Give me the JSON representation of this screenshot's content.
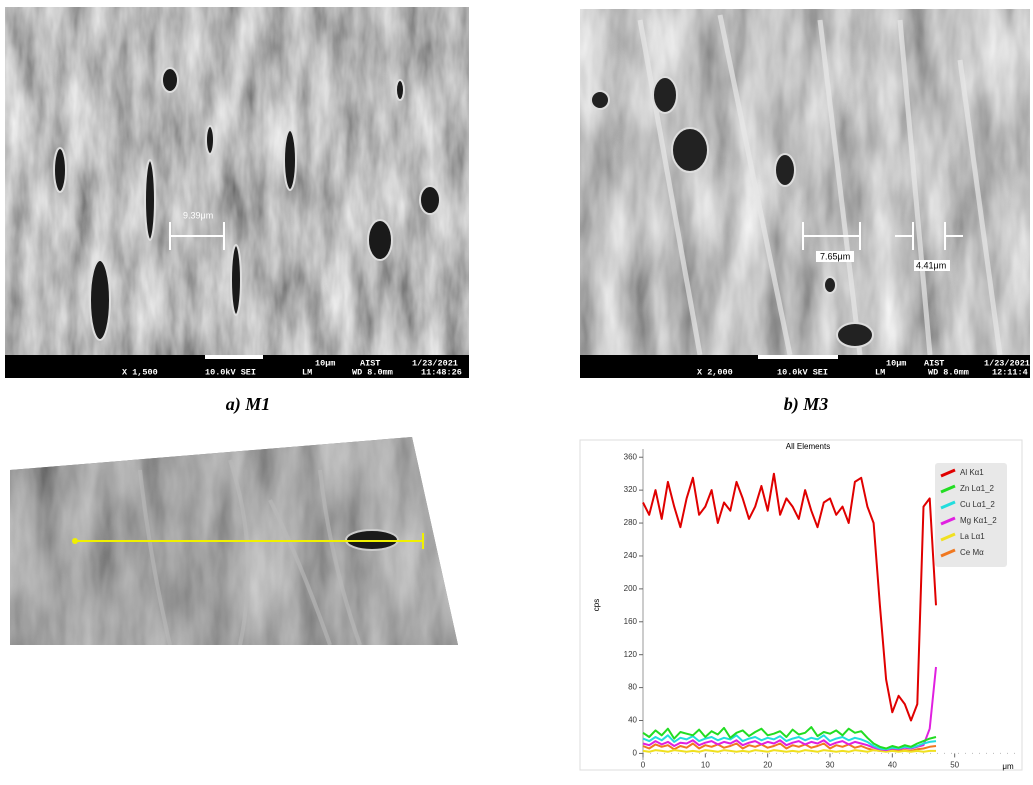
{
  "figure": {
    "panels": [
      {
        "caption": "a) M1",
        "magnification": "X 1,500",
        "voltage": "10.0kV SEI",
        "scale": "10μm",
        "org": "AIST",
        "mode": "LM",
        "date": "1/23/2021",
        "wd": "WD 8.0mm",
        "time": "11:48:26",
        "measurements": [
          "9.39μm"
        ]
      },
      {
        "caption": "b) M3",
        "magnification": "X 2,000",
        "voltage": "10.0kV SEI",
        "scale": "10μm",
        "org": "AIST",
        "mode": "LM",
        "date": "1/23/2021",
        "wd": "WD 8.0mm",
        "time": "12:11:4",
        "measurements": [
          "7.65μm",
          "4.41μm"
        ]
      }
    ]
  },
  "chart_data": {
    "type": "line",
    "title": "All Elements",
    "y_label": "cps",
    "x_label": "μm",
    "x": [
      0,
      1,
      2,
      3,
      4,
      5,
      6,
      7,
      8,
      9,
      10,
      11,
      12,
      13,
      14,
      15,
      16,
      17,
      18,
      19,
      20,
      21,
      22,
      23,
      24,
      25,
      26,
      27,
      28,
      29,
      30,
      31,
      32,
      33,
      34,
      35,
      36,
      37,
      38,
      39,
      40,
      41,
      42,
      43,
      44,
      45,
      46,
      47
    ],
    "series": [
      {
        "name": "Al Kα1",
        "color": "#e00000",
        "values": [
          305,
          290,
          320,
          285,
          330,
          300,
          275,
          310,
          335,
          290,
          300,
          320,
          280,
          305,
          295,
          330,
          310,
          285,
          300,
          325,
          295,
          340,
          290,
          310,
          300,
          285,
          320,
          295,
          275,
          305,
          310,
          290,
          300,
          280,
          330,
          335,
          300,
          280,
          180,
          90,
          50,
          70,
          60,
          40,
          60,
          300,
          310,
          180
        ]
      },
      {
        "name": "Zn Lα1_2",
        "color": "#22dd22",
        "values": [
          25,
          20,
          28,
          22,
          30,
          18,
          26,
          24,
          22,
          29,
          20,
          27,
          23,
          31,
          19,
          25,
          28,
          21,
          26,
          30,
          22,
          24,
          27,
          20,
          29,
          23,
          25,
          32,
          21,
          26,
          24,
          28,
          22,
          30,
          25,
          27,
          19,
          12,
          8,
          6,
          9,
          7,
          10,
          8,
          12,
          15,
          18,
          20
        ]
      },
      {
        "name": "Cu Lα1_2",
        "color": "#22dddd",
        "values": [
          18,
          15,
          20,
          16,
          22,
          14,
          19,
          17,
          21,
          15,
          18,
          20,
          16,
          19,
          17,
          22,
          15,
          18,
          20,
          16,
          19,
          17,
          21,
          15,
          18,
          20,
          16,
          19,
          17,
          22,
          15,
          18,
          20,
          16,
          19,
          17,
          14,
          9,
          6,
          5,
          7,
          6,
          8,
          7,
          9,
          12,
          14,
          15
        ]
      },
      {
        "name": "Mg Kα1_2",
        "color": "#e020e0",
        "values": [
          12,
          10,
          15,
          11,
          14,
          9,
          13,
          12,
          16,
          10,
          13,
          15,
          11,
          14,
          12,
          16,
          10,
          13,
          15,
          11,
          14,
          12,
          16,
          10,
          13,
          15,
          11,
          14,
          12,
          16,
          10,
          13,
          15,
          11,
          14,
          12,
          10,
          7,
          5,
          4,
          6,
          5,
          7,
          6,
          8,
          10,
          30,
          105
        ]
      },
      {
        "name": "La Lα1",
        "color": "#f0e020",
        "values": [
          3,
          2,
          4,
          3,
          2,
          4,
          3,
          2,
          3,
          2,
          4,
          3,
          2,
          4,
          3,
          2,
          3,
          2,
          4,
          3,
          2,
          4,
          3,
          2,
          3,
          2,
          4,
          3,
          2,
          4,
          3,
          2,
          3,
          2,
          4,
          3,
          2,
          4,
          3,
          2,
          3,
          2,
          3,
          2,
          3,
          2,
          3,
          3
        ]
      },
      {
        "name": "Ce Mα",
        "color": "#f07820",
        "values": [
          9,
          6,
          11,
          8,
          10,
          5,
          9,
          7,
          12,
          6,
          10,
          8,
          11,
          7,
          9,
          12,
          6,
          10,
          8,
          11,
          7,
          9,
          12,
          6,
          10,
          8,
          11,
          7,
          9,
          12,
          6,
          10,
          8,
          11,
          7,
          9,
          6,
          4,
          3,
          3,
          4,
          3,
          4,
          3,
          5,
          6,
          8,
          9
        ]
      }
    ],
    "xlim": [
      0,
      60
    ],
    "ylim": [
      -8,
      370
    ],
    "xticks": [
      0,
      10,
      20,
      30,
      40,
      50
    ],
    "yticks": [
      0,
      40,
      80,
      120,
      160,
      200,
      240,
      280,
      320,
      360
    ],
    "legend": "upper right"
  }
}
